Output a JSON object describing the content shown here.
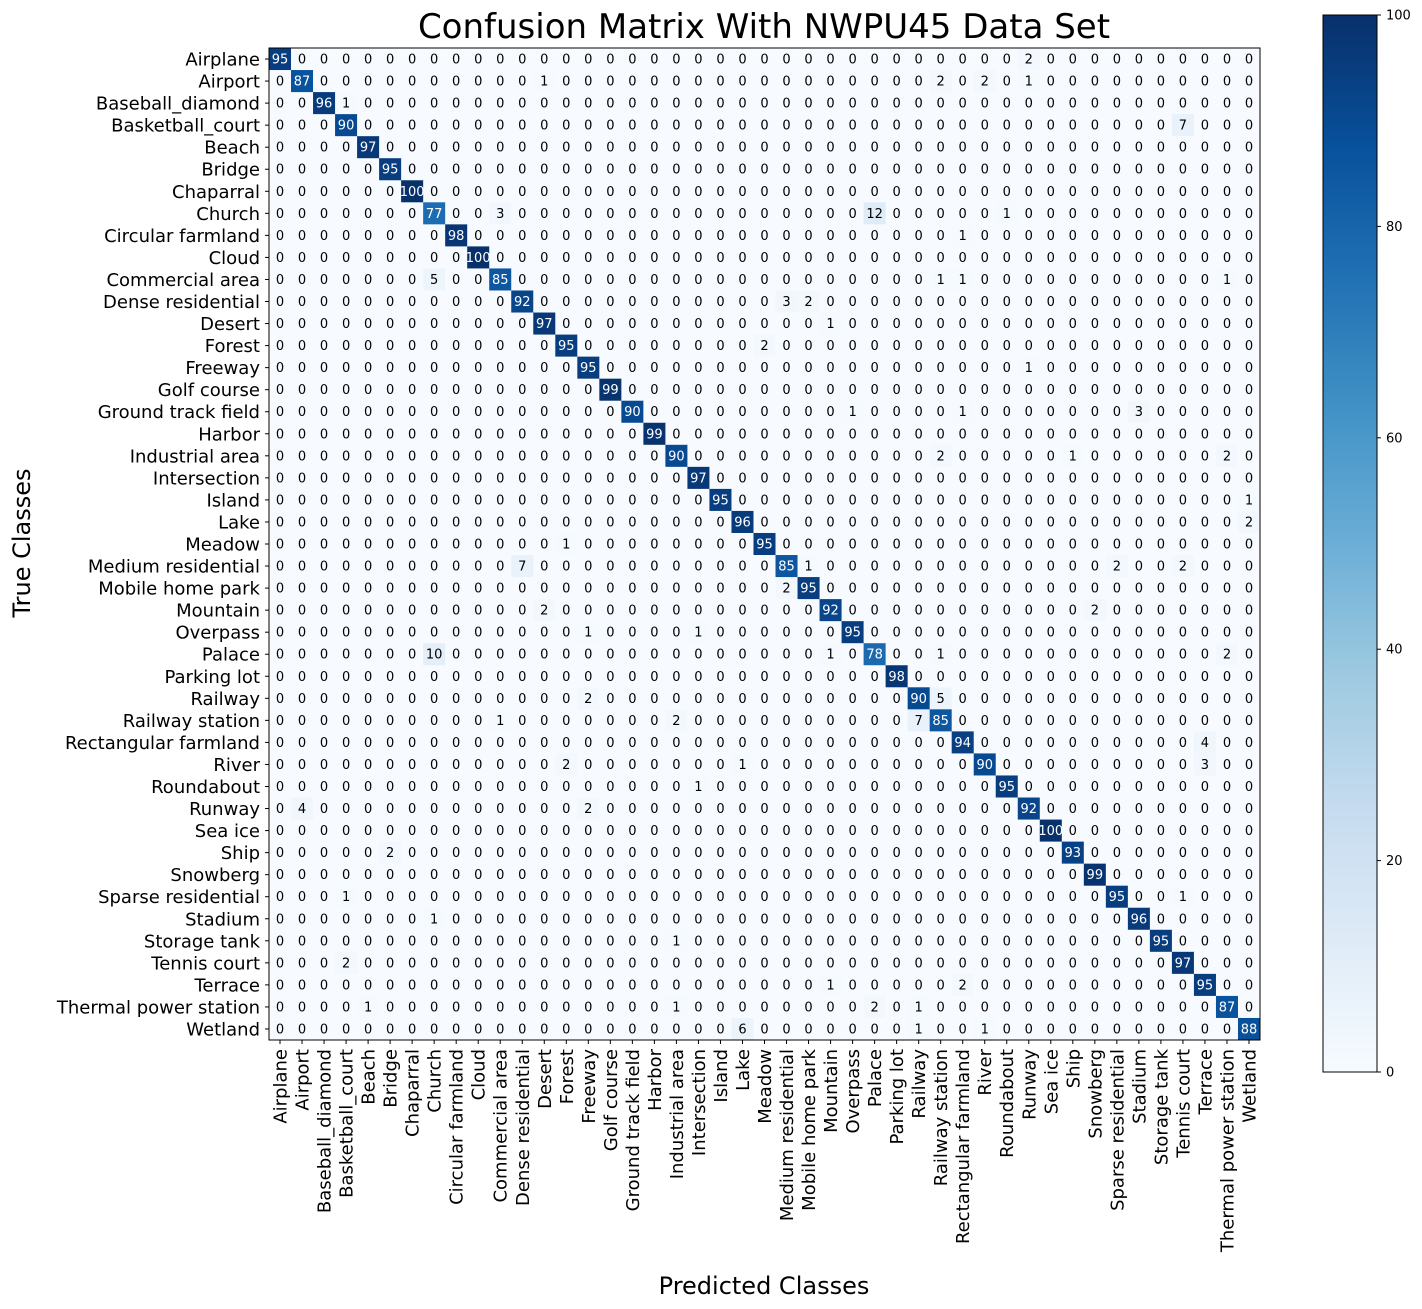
{
  "chart_data": {
    "type": "heatmap",
    "title": "Confusion Matrix With NWPU45 Data Set",
    "xlabel": "Predicted Classes",
    "ylabel": "True Classes",
    "classes": [
      "Airplane",
      "Airport",
      "Baseball_diamond",
      "Basketball_court",
      "Beach",
      "Bridge",
      "Chaparral",
      "Church",
      "Circular farmland",
      "Cloud",
      "Commercial area",
      "Dense residential",
      "Desert",
      "Forest",
      "Freeway",
      "Golf course",
      "Ground track field",
      "Harbor",
      "Industrial area",
      "Intersection",
      "Island",
      "Lake",
      "Meadow",
      "Medium residential",
      "Mobile home park",
      "Mountain",
      "Overpass",
      "Palace",
      "Parking lot",
      "Railway",
      "Railway station",
      "Rectangular farmland",
      "River",
      "Roundabout",
      "Runway",
      "Sea ice",
      "Ship",
      "Snowberg",
      "Sparse residential",
      "Stadium",
      "Storage tank",
      "Tennis court",
      "Terrace",
      "Thermal power station",
      "Wetland"
    ],
    "nonzero": [
      [
        0,
        0,
        95
      ],
      [
        0,
        34,
        2
      ],
      [
        1,
        1,
        87
      ],
      [
        1,
        12,
        1
      ],
      [
        1,
        30,
        2
      ],
      [
        1,
        32,
        2
      ],
      [
        1,
        34,
        1
      ],
      [
        2,
        2,
        96
      ],
      [
        2,
        3,
        1
      ],
      [
        3,
        3,
        90
      ],
      [
        3,
        41,
        7
      ],
      [
        4,
        4,
        97
      ],
      [
        5,
        5,
        95
      ],
      [
        6,
        6,
        100
      ],
      [
        7,
        7,
        77
      ],
      [
        7,
        10,
        3
      ],
      [
        7,
        27,
        12
      ],
      [
        7,
        33,
        1
      ],
      [
        8,
        8,
        98
      ],
      [
        8,
        31,
        1
      ],
      [
        9,
        9,
        100
      ],
      [
        10,
        7,
        5
      ],
      [
        10,
        10,
        85
      ],
      [
        10,
        30,
        1
      ],
      [
        10,
        31,
        1
      ],
      [
        10,
        43,
        1
      ],
      [
        11,
        11,
        92
      ],
      [
        11,
        23,
        3
      ],
      [
        11,
        24,
        2
      ],
      [
        12,
        12,
        97
      ],
      [
        12,
        25,
        1
      ],
      [
        13,
        13,
        95
      ],
      [
        13,
        22,
        2
      ],
      [
        14,
        14,
        95
      ],
      [
        14,
        34,
        1
      ],
      [
        15,
        15,
        99
      ],
      [
        16,
        16,
        90
      ],
      [
        16,
        26,
        1
      ],
      [
        16,
        31,
        1
      ],
      [
        16,
        39,
        3
      ],
      [
        17,
        17,
        99
      ],
      [
        18,
        18,
        90
      ],
      [
        18,
        30,
        2
      ],
      [
        18,
        36,
        1
      ],
      [
        18,
        43,
        2
      ],
      [
        19,
        19,
        97
      ],
      [
        20,
        20,
        95
      ],
      [
        20,
        44,
        1
      ],
      [
        21,
        21,
        96
      ],
      [
        21,
        44,
        2
      ],
      [
        22,
        13,
        1
      ],
      [
        22,
        22,
        95
      ],
      [
        23,
        11,
        7
      ],
      [
        23,
        23,
        85
      ],
      [
        23,
        24,
        1
      ],
      [
        23,
        38,
        2
      ],
      [
        23,
        41,
        2
      ],
      [
        24,
        23,
        2
      ],
      [
        24,
        24,
        95
      ],
      [
        25,
        12,
        2
      ],
      [
        25,
        25,
        92
      ],
      [
        25,
        37,
        2
      ],
      [
        26,
        14,
        1
      ],
      [
        26,
        19,
        1
      ],
      [
        26,
        26,
        95
      ],
      [
        27,
        7,
        10
      ],
      [
        27,
        25,
        1
      ],
      [
        27,
        27,
        78
      ],
      [
        27,
        30,
        1
      ],
      [
        27,
        43,
        2
      ],
      [
        28,
        28,
        98
      ],
      [
        29,
        14,
        2
      ],
      [
        29,
        29,
        90
      ],
      [
        29,
        30,
        5
      ],
      [
        30,
        10,
        1
      ],
      [
        30,
        18,
        2
      ],
      [
        30,
        29,
        7
      ],
      [
        30,
        30,
        85
      ],
      [
        31,
        31,
        94
      ],
      [
        31,
        42,
        4
      ],
      [
        32,
        13,
        2
      ],
      [
        32,
        21,
        1
      ],
      [
        32,
        32,
        90
      ],
      [
        32,
        42,
        3
      ],
      [
        33,
        19,
        1
      ],
      [
        33,
        33,
        95
      ],
      [
        34,
        1,
        4
      ],
      [
        34,
        14,
        2
      ],
      [
        34,
        34,
        92
      ],
      [
        35,
        35,
        100
      ],
      [
        36,
        5,
        2
      ],
      [
        36,
        36,
        93
      ],
      [
        37,
        37,
        99
      ],
      [
        38,
        3,
        1
      ],
      [
        38,
        38,
        95
      ],
      [
        38,
        41,
        1
      ],
      [
        39,
        7,
        1
      ],
      [
        39,
        39,
        96
      ],
      [
        40,
        18,
        1
      ],
      [
        40,
        40,
        95
      ],
      [
        41,
        3,
        2
      ],
      [
        41,
        41,
        97
      ],
      [
        42,
        25,
        1
      ],
      [
        42,
        31,
        2
      ],
      [
        42,
        42,
        95
      ],
      [
        43,
        4,
        1
      ],
      [
        43,
        18,
        1
      ],
      [
        43,
        27,
        2
      ],
      [
        43,
        29,
        1
      ],
      [
        43,
        43,
        87
      ],
      [
        44,
        21,
        6
      ],
      [
        44,
        29,
        1
      ],
      [
        44,
        32,
        1
      ],
      [
        44,
        44,
        88
      ]
    ],
    "zlim": [
      0,
      100
    ],
    "colorbar_ticks": [
      0,
      20,
      40,
      60,
      80,
      100
    ],
    "colormap": "Blues",
    "colors": {
      "low": "#f7fbff",
      "high": "#08306b",
      "text_light": "#ffffff",
      "text_dark": "#000000"
    }
  }
}
